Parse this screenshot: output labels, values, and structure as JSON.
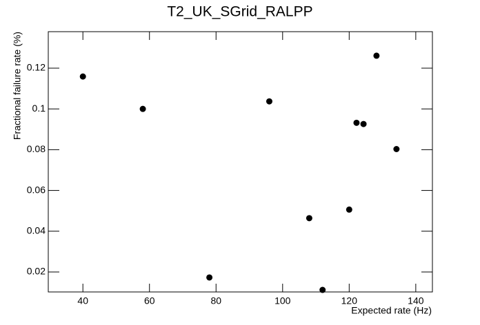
{
  "chart_data": {
    "type": "scatter",
    "title": "T2_UK_SGrid_RALPP",
    "x_label": "Expected rate (Hz)",
    "y_label": "Fractional failure rate (%)",
    "x": [
      40,
      58,
      78,
      96,
      108,
      112,
      120,
      122.2,
      124.3,
      128.2,
      134.2
    ],
    "values": [
      0.1159,
      0.1,
      0.0173,
      0.1037,
      0.0464,
      0.0112,
      0.0506,
      0.0932,
      0.0926,
      0.1261,
      0.0803
    ],
    "color": "#000000",
    "xlim": [
      29.6,
      145
    ],
    "xticks": [
      40,
      60,
      80,
      100,
      120,
      140
    ],
    "ylim": [
      0.0102,
      0.1379
    ],
    "yticks": [
      0.02,
      0.04,
      0.06,
      0.08,
      0.1,
      0.12
    ]
  }
}
